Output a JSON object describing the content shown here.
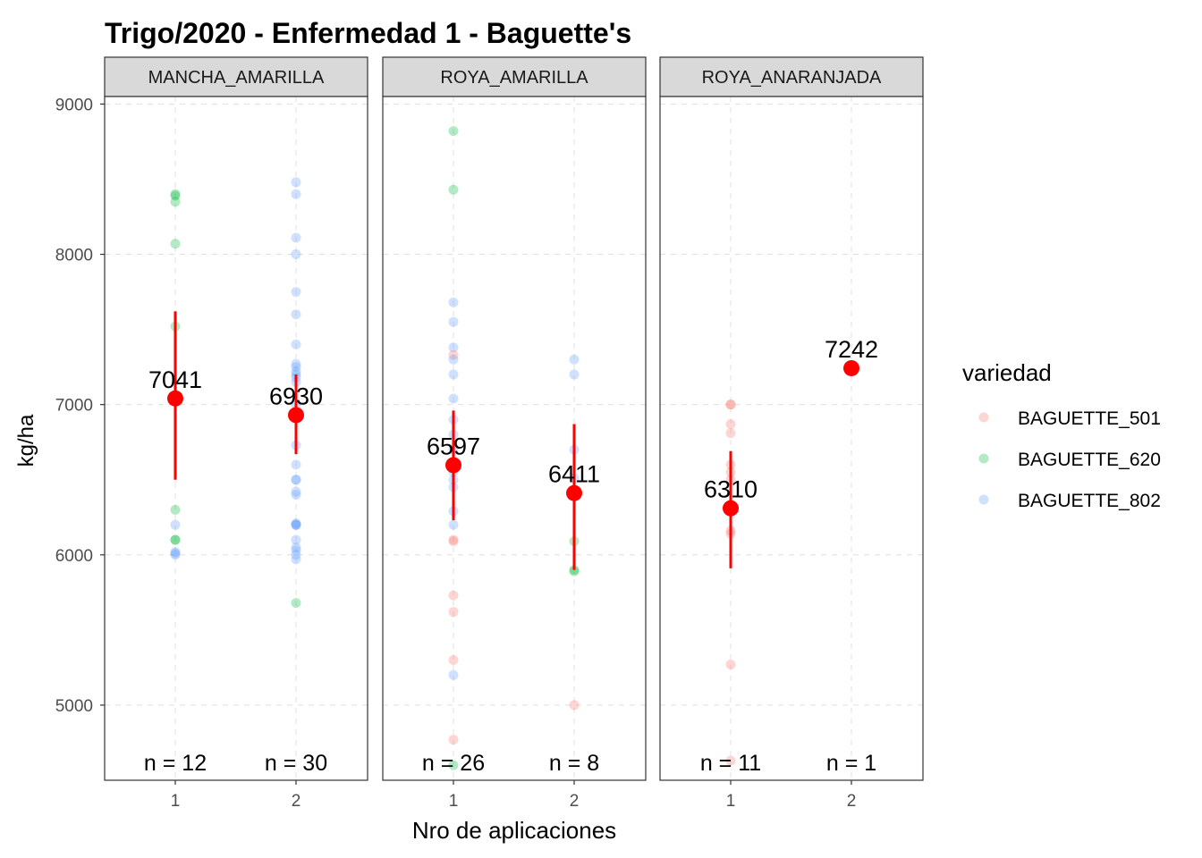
{
  "title": "Trigo/2020 - Enfermedad 1 - Baguette's",
  "xlabel": "Nro de aplicaciones",
  "ylabel": "kg/ha",
  "legend": {
    "title": "variedad",
    "items": [
      {
        "label": "BAGUETTE_501",
        "color": "#F8766D"
      },
      {
        "label": "BAGUETTE_620",
        "color": "#00BA38"
      },
      {
        "label": "BAGUETTE_802",
        "color": "#619CFF"
      }
    ]
  },
  "colors": {
    "mean": "#FF0000",
    "strip_bg": "#D9D9D9",
    "grid": "#E0E0E0"
  },
  "chart_data": {
    "type": "scatter",
    "facet_by": "enfermedad",
    "x_categories": [
      "1",
      "2"
    ],
    "ylim": [
      4500,
      9050
    ],
    "y_ticks": [
      5000,
      6000,
      7000,
      8000,
      9000
    ],
    "grid": true,
    "legend_position": "right",
    "panels": [
      {
        "name": "MANCHA_AMARILLA",
        "groups": [
          {
            "x": "1",
            "mean": 7041,
            "mean_label": "7041",
            "lower": 6500,
            "upper": 7620,
            "n_label": "n = 12",
            "points": [
              {
                "v": "BAGUETTE_620",
                "y": 8400
              },
              {
                "v": "BAGUETTE_620",
                "y": 8390
              },
              {
                "v": "BAGUETTE_620",
                "y": 8350
              },
              {
                "v": "BAGUETTE_620",
                "y": 8070
              },
              {
                "v": "BAGUETTE_620",
                "y": 7520
              },
              {
                "v": "BAGUETTE_620",
                "y": 6300
              },
              {
                "v": "BAGUETTE_620",
                "y": 6100
              },
              {
                "v": "BAGUETTE_620",
                "y": 6100
              },
              {
                "v": "BAGUETTE_802",
                "y": 6200
              },
              {
                "v": "BAGUETTE_802",
                "y": 6020
              },
              {
                "v": "BAGUETTE_802",
                "y": 6000
              },
              {
                "v": "BAGUETTE_802",
                "y": 6010
              }
            ]
          },
          {
            "x": "2",
            "mean": 6930,
            "mean_label": "6930",
            "lower": 6670,
            "upper": 7200,
            "n_label": "n = 30",
            "points": [
              {
                "v": "BAGUETTE_802",
                "y": 8480
              },
              {
                "v": "BAGUETTE_802",
                "y": 8400
              },
              {
                "v": "BAGUETTE_802",
                "y": 8110
              },
              {
                "v": "BAGUETTE_802",
                "y": 8000
              },
              {
                "v": "BAGUETTE_802",
                "y": 7750
              },
              {
                "v": "BAGUETTE_802",
                "y": 7600
              },
              {
                "v": "BAGUETTE_802",
                "y": 7400
              },
              {
                "v": "BAGUETTE_802",
                "y": 7270
              },
              {
                "v": "BAGUETTE_802",
                "y": 7250
              },
              {
                "v": "BAGUETTE_802",
                "y": 7220
              },
              {
                "v": "BAGUETTE_802",
                "y": 7200
              },
              {
                "v": "BAGUETTE_802",
                "y": 7180
              },
              {
                "v": "BAGUETTE_802",
                "y": 7150
              },
              {
                "v": "BAGUETTE_802",
                "y": 7000
              },
              {
                "v": "BAGUETTE_802",
                "y": 6730
              },
              {
                "v": "BAGUETTE_802",
                "y": 6600
              },
              {
                "v": "BAGUETTE_802",
                "y": 6500
              },
              {
                "v": "BAGUETTE_802",
                "y": 6500
              },
              {
                "v": "BAGUETTE_802",
                "y": 6420
              },
              {
                "v": "BAGUETTE_802",
                "y": 6400
              },
              {
                "v": "BAGUETTE_802",
                "y": 6200
              },
              {
                "v": "BAGUETTE_802",
                "y": 6200
              },
              {
                "v": "BAGUETTE_802",
                "y": 6200
              },
              {
                "v": "BAGUETTE_802",
                "y": 6100
              },
              {
                "v": "BAGUETTE_802",
                "y": 6050
              },
              {
                "v": "BAGUETTE_802",
                "y": 6030
              },
              {
                "v": "BAGUETTE_802",
                "y": 6000
              },
              {
                "v": "BAGUETTE_802",
                "y": 5970
              },
              {
                "v": "BAGUETTE_620",
                "y": 5680
              },
              {
                "v": "BAGUETTE_802",
                "y": 6210
              }
            ]
          }
        ]
      },
      {
        "name": "ROYA_AMARILLA",
        "groups": [
          {
            "x": "1",
            "mean": 6597,
            "mean_label": "6597",
            "lower": 6230,
            "upper": 6960,
            "n_label": "n = 26",
            "points": [
              {
                "v": "BAGUETTE_620",
                "y": 8820
              },
              {
                "v": "BAGUETTE_620",
                "y": 8430
              },
              {
                "v": "BAGUETTE_802",
                "y": 7680
              },
              {
                "v": "BAGUETTE_802",
                "y": 7550
              },
              {
                "v": "BAGUETTE_802",
                "y": 7380
              },
              {
                "v": "BAGUETTE_501",
                "y": 7330
              },
              {
                "v": "BAGUETTE_802",
                "y": 7300
              },
              {
                "v": "BAGUETTE_802",
                "y": 7200
              },
              {
                "v": "BAGUETTE_802",
                "y": 7040
              },
              {
                "v": "BAGUETTE_802",
                "y": 6900
              },
              {
                "v": "BAGUETTE_802",
                "y": 6800
              },
              {
                "v": "BAGUETTE_802",
                "y": 6600
              },
              {
                "v": "BAGUETTE_802",
                "y": 6500
              },
              {
                "v": "BAGUETTE_802",
                "y": 6290
              },
              {
                "v": "BAGUETTE_802",
                "y": 6200
              },
              {
                "v": "BAGUETTE_501",
                "y": 6100
              },
              {
                "v": "BAGUETTE_501",
                "y": 6090
              },
              {
                "v": "BAGUETTE_501",
                "y": 5730
              },
              {
                "v": "BAGUETTE_501",
                "y": 5620
              },
              {
                "v": "BAGUETTE_501",
                "y": 5300
              },
              {
                "v": "BAGUETTE_802",
                "y": 5200
              },
              {
                "v": "BAGUETTE_501",
                "y": 4770
              },
              {
                "v": "BAGUETTE_620",
                "y": 4600
              },
              {
                "v": "BAGUETTE_802",
                "y": 6700
              },
              {
                "v": "BAGUETTE_802",
                "y": 6550
              },
              {
                "v": "BAGUETTE_802",
                "y": 6450
              }
            ]
          },
          {
            "x": "2",
            "mean": 6411,
            "mean_label": "6411",
            "lower": 5900,
            "upper": 6870,
            "n_label": "n = 8",
            "points": [
              {
                "v": "BAGUETTE_802",
                "y": 7300
              },
              {
                "v": "BAGUETTE_802",
                "y": 7200
              },
              {
                "v": "BAGUETTE_802",
                "y": 6700
              },
              {
                "v": "BAGUETTE_802",
                "y": 6510
              },
              {
                "v": "BAGUETTE_620",
                "y": 6090
              },
              {
                "v": "BAGUETTE_620",
                "y": 5900
              },
              {
                "v": "BAGUETTE_620",
                "y": 5890
              },
              {
                "v": "BAGUETTE_501",
                "y": 5000
              }
            ]
          }
        ]
      },
      {
        "name": "ROYA_ANARANJADA",
        "groups": [
          {
            "x": "1",
            "mean": 6310,
            "mean_label": "6310",
            "lower": 5910,
            "upper": 6690,
            "n_label": "n = 11",
            "points": [
              {
                "v": "BAGUETTE_501",
                "y": 7000
              },
              {
                "v": "BAGUETTE_501",
                "y": 7000
              },
              {
                "v": "BAGUETTE_501",
                "y": 6870
              },
              {
                "v": "BAGUETTE_501",
                "y": 6810
              },
              {
                "v": "BAGUETTE_501",
                "y": 6600
              },
              {
                "v": "BAGUETTE_501",
                "y": 6550
              },
              {
                "v": "BAGUETTE_501",
                "y": 6500
              },
              {
                "v": "BAGUETTE_501",
                "y": 6160
              },
              {
                "v": "BAGUETTE_501",
                "y": 6140
              },
              {
                "v": "BAGUETTE_501",
                "y": 5270
              },
              {
                "v": "BAGUETTE_501",
                "y": 4630
              }
            ]
          },
          {
            "x": "2",
            "mean": 7242,
            "mean_label": "7242",
            "lower": null,
            "upper": null,
            "n_label": "n = 1",
            "points": []
          }
        ]
      }
    ]
  }
}
